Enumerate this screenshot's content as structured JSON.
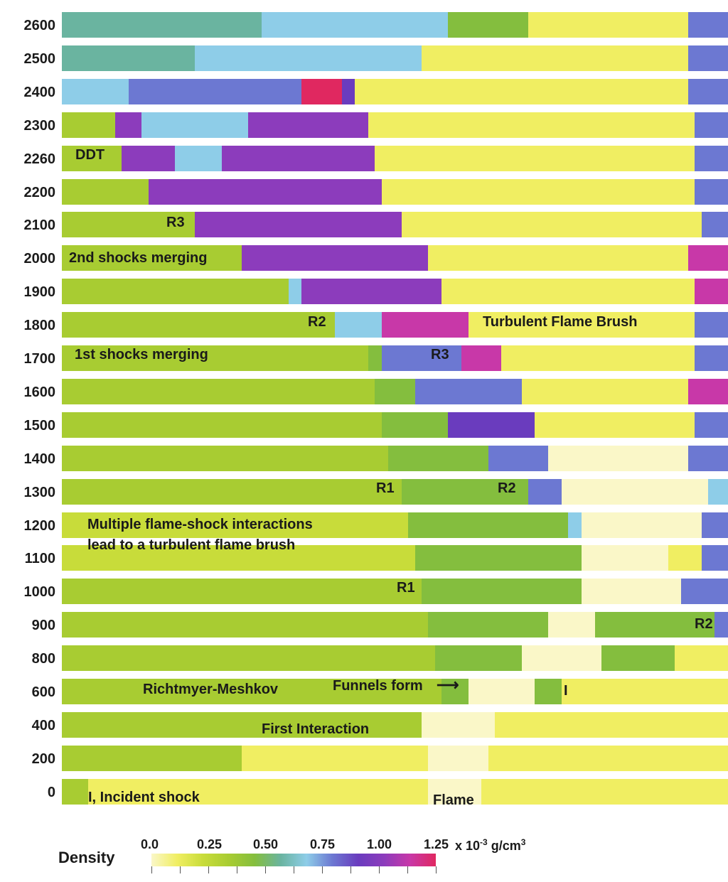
{
  "colors": {
    "pale": "#faf7c8",
    "yellow": "#f0ee62",
    "lightgreen": "#c8dc3a",
    "green": "#a8cc32",
    "darkgreen": "#84be3e",
    "teal": "#6ab4a0",
    "lightblue": "#8ecde8",
    "blue": "#6c78d2",
    "violet": "#6a3cbe",
    "purple": "#8c3cbc",
    "magenta": "#c838a8",
    "red": "#e02860"
  },
  "rows": [
    {
      "label": "2600",
      "segments": [
        [
          "teal",
          0,
          0.3
        ],
        [
          "lightblue",
          0.3,
          0.58
        ],
        [
          "darkgreen",
          0.58,
          0.7
        ],
        [
          "yellow",
          0.7,
          0.94
        ],
        [
          "blue",
          0.94,
          1.0
        ]
      ]
    },
    {
      "label": "2500",
      "segments": [
        [
          "teal",
          0,
          0.2
        ],
        [
          "lightblue",
          0.2,
          0.54
        ],
        [
          "yellow",
          0.54,
          0.94
        ],
        [
          "blue",
          0.94,
          1.0
        ]
      ]
    },
    {
      "label": "2400",
      "segments": [
        [
          "lightblue",
          0,
          0.1
        ],
        [
          "blue",
          0.1,
          0.36
        ],
        [
          "red",
          0.36,
          0.42
        ],
        [
          "violet",
          0.42,
          0.44
        ],
        [
          "yellow",
          0.44,
          0.94
        ],
        [
          "blue",
          0.94,
          1.0
        ]
      ]
    },
    {
      "label": "2300",
      "segments": [
        [
          "green",
          0,
          0.08
        ],
        [
          "purple",
          0.08,
          0.12
        ],
        [
          "lightblue",
          0.12,
          0.28
        ],
        [
          "purple",
          0.28,
          0.46
        ],
        [
          "yellow",
          0.46,
          0.95
        ],
        [
          "blue",
          0.95,
          1.0
        ]
      ]
    },
    {
      "label": "2260",
      "segments": [
        [
          "green",
          0,
          0.09
        ],
        [
          "purple",
          0.09,
          0.17
        ],
        [
          "lightblue",
          0.17,
          0.24
        ],
        [
          "purple",
          0.24,
          0.47
        ],
        [
          "yellow",
          0.47,
          0.95
        ],
        [
          "blue",
          0.95,
          1.0
        ]
      ]
    },
    {
      "label": "2200",
      "segments": [
        [
          "green",
          0,
          0.13
        ],
        [
          "purple",
          0.13,
          0.48
        ],
        [
          "yellow",
          0.48,
          0.95
        ],
        [
          "blue",
          0.95,
          1.0
        ]
      ]
    },
    {
      "label": "2100",
      "segments": [
        [
          "green",
          0,
          0.2
        ],
        [
          "purple",
          0.2,
          0.51
        ],
        [
          "yellow",
          0.51,
          0.96
        ],
        [
          "blue",
          0.96,
          1.0
        ]
      ]
    },
    {
      "label": "2000",
      "segments": [
        [
          "green",
          0,
          0.27
        ],
        [
          "purple",
          0.27,
          0.55
        ],
        [
          "yellow",
          0.55,
          0.94
        ],
        [
          "magenta",
          0.94,
          1.0
        ]
      ]
    },
    {
      "label": "1900",
      "segments": [
        [
          "green",
          0,
          0.34
        ],
        [
          "lightblue",
          0.34,
          0.36
        ],
        [
          "purple",
          0.36,
          0.57
        ],
        [
          "yellow",
          0.57,
          0.95
        ],
        [
          "magenta",
          0.95,
          1.0
        ]
      ]
    },
    {
      "label": "1800",
      "segments": [
        [
          "green",
          0,
          0.41
        ],
        [
          "lightblue",
          0.41,
          0.48
        ],
        [
          "magenta",
          0.48,
          0.61
        ],
        [
          "yellow",
          0.61,
          0.95
        ],
        [
          "blue",
          0.95,
          1.0
        ]
      ]
    },
    {
      "label": "1700",
      "segments": [
        [
          "green",
          0,
          0.46
        ],
        [
          "darkgreen",
          0.46,
          0.48
        ],
        [
          "blue",
          0.48,
          0.6
        ],
        [
          "magenta",
          0.6,
          0.66
        ],
        [
          "yellow",
          0.66,
          0.95
        ],
        [
          "blue",
          0.95,
          1.0
        ]
      ]
    },
    {
      "label": "1600",
      "segments": [
        [
          "green",
          0,
          0.47
        ],
        [
          "darkgreen",
          0.47,
          0.53
        ],
        [
          "blue",
          0.53,
          0.69
        ],
        [
          "yellow",
          0.69,
          0.94
        ],
        [
          "magenta",
          0.94,
          1.0
        ]
      ]
    },
    {
      "label": "1500",
      "segments": [
        [
          "green",
          0,
          0.48
        ],
        [
          "darkgreen",
          0.48,
          0.58
        ],
        [
          "violet",
          0.58,
          0.71
        ],
        [
          "yellow",
          0.71,
          0.95
        ],
        [
          "blue",
          0.95,
          1.0
        ]
      ]
    },
    {
      "label": "1400",
      "segments": [
        [
          "green",
          0,
          0.49
        ],
        [
          "darkgreen",
          0.49,
          0.64
        ],
        [
          "blue",
          0.64,
          0.73
        ],
        [
          "pale",
          0.73,
          0.94
        ],
        [
          "blue",
          0.94,
          1.0
        ]
      ]
    },
    {
      "label": "1300",
      "segments": [
        [
          "green",
          0,
          0.51
        ],
        [
          "darkgreen",
          0.51,
          0.7
        ],
        [
          "blue",
          0.7,
          0.75
        ],
        [
          "pale",
          0.75,
          0.97
        ],
        [
          "lightblue",
          0.97,
          1.0
        ]
      ]
    },
    {
      "label": "1200",
      "segments": [
        [
          "lightgreen",
          0,
          0.52
        ],
        [
          "darkgreen",
          0.52,
          0.76
        ],
        [
          "lightblue",
          0.76,
          0.78
        ],
        [
          "pale",
          0.78,
          0.96
        ],
        [
          "blue",
          0.96,
          1.0
        ]
      ]
    },
    {
      "label": "1100",
      "segments": [
        [
          "lightgreen",
          0,
          0.53
        ],
        [
          "darkgreen",
          0.53,
          0.78
        ],
        [
          "pale",
          0.78,
          0.91
        ],
        [
          "yellow",
          0.91,
          0.96
        ],
        [
          "blue",
          0.96,
          1.0
        ]
      ]
    },
    {
      "label": "1000",
      "segments": [
        [
          "green",
          0,
          0.54
        ],
        [
          "darkgreen",
          0.54,
          0.78
        ],
        [
          "pale",
          0.78,
          0.93
        ],
        [
          "blue",
          0.93,
          1.0
        ]
      ]
    },
    {
      "label": "900",
      "segments": [
        [
          "green",
          0,
          0.55
        ],
        [
          "darkgreen",
          0.55,
          0.73
        ],
        [
          "pale",
          0.73,
          0.8
        ],
        [
          "darkgreen",
          0.8,
          0.98
        ],
        [
          "blue",
          0.98,
          1.0
        ]
      ]
    },
    {
      "label": "800",
      "segments": [
        [
          "green",
          0,
          0.56
        ],
        [
          "darkgreen",
          0.56,
          0.69
        ],
        [
          "pale",
          0.69,
          0.81
        ],
        [
          "darkgreen",
          0.81,
          0.92
        ],
        [
          "yellow",
          0.92,
          1.0
        ]
      ]
    },
    {
      "label": "600",
      "segments": [
        [
          "green",
          0,
          0.57
        ],
        [
          "darkgreen",
          0.57,
          0.61
        ],
        [
          "pale",
          0.61,
          0.71
        ],
        [
          "darkgreen",
          0.71,
          0.75
        ],
        [
          "yellow",
          0.75,
          1.0
        ]
      ]
    },
    {
      "label": "400",
      "segments": [
        [
          "green",
          0,
          0.54
        ],
        [
          "pale",
          0.54,
          0.65
        ],
        [
          "yellow",
          0.65,
          1.0
        ]
      ]
    },
    {
      "label": "200",
      "segments": [
        [
          "green",
          0,
          0.27
        ],
        [
          "yellow",
          0.27,
          0.55
        ],
        [
          "pale",
          0.55,
          0.64
        ],
        [
          "yellow",
          0.64,
          1.0
        ]
      ]
    },
    {
      "label": "0",
      "segments": [
        [
          "green",
          0,
          0.04
        ],
        [
          "yellow",
          0.04,
          0.55
        ],
        [
          "pale",
          0.55,
          0.63
        ],
        [
          "yellow",
          0.63,
          1.0
        ]
      ]
    }
  ],
  "annotations": {
    "ddt": "DDT",
    "r3_2100": "R3",
    "second_shocks": "2nd shocks merging",
    "r2_1800": "R2",
    "turbulent_brush": "Turbulent Flame Brush",
    "first_shocks": "1st shocks merging",
    "r3_1700": "R3",
    "r1_1300": "R1",
    "r2_1300": "R2",
    "multiple_line1": "Multiple flame-shock interactions",
    "multiple_line2": "lead to a turbulent flame brush",
    "r1_1000": "R1",
    "r2_900": "R2",
    "richtmyer": "Richtmyer-Meshkov",
    "funnels": "Funnels form",
    "i_600": "I",
    "first_interaction": "First Interaction",
    "incident": "I, Incident shock",
    "flame": "Flame"
  },
  "legend": {
    "title": "Density",
    "ticks": [
      "0.0",
      "0.25",
      "0.50",
      "0.75",
      "1.00",
      "1.25"
    ],
    "unit_prefix": "x 10",
    "unit_exp": "-3",
    "unit_suffix": "g/cm",
    "unit_sup": "3"
  }
}
